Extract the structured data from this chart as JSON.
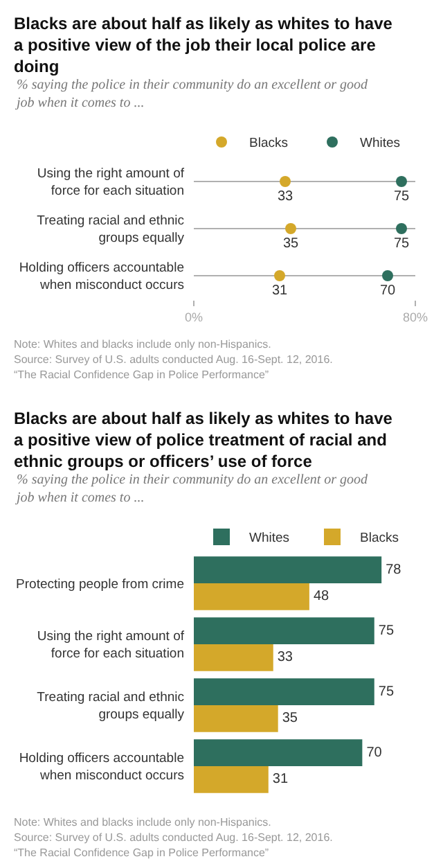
{
  "chart_data": [
    {
      "type": "scatter",
      "orientation": "horizontal",
      "title": "Blacks are about half as likely as whites to have a positive view of the job their local police are doing",
      "subtitle": "% saying the police in their community do an excellent or good job when it comes to ...",
      "categories": [
        "Using the right amount of force for each situation",
        "Treating racial and ethnic groups equally",
        "Holding officers accountable when misconduct occurs"
      ],
      "series": [
        {
          "name": "Blacks",
          "color": "#d4a82a",
          "values": [
            33,
            35,
            31
          ]
        },
        {
          "name": "Whites",
          "color": "#2e6f5e",
          "values": [
            75,
            75,
            70
          ]
        }
      ],
      "xlim": [
        0,
        80
      ],
      "xticks": [
        {
          "value": 0,
          "label": "0%"
        },
        {
          "value": 80,
          "label": "80%"
        }
      ],
      "data_labels": true,
      "grid": "y",
      "legend": "top",
      "marker": "circle",
      "annotations": [
        "Note: Whites and blacks include only non-Hispanics.",
        "Source: Survey of U.S. adults conducted Aug. 16-Sept. 12, 2016.",
        "“The Racial Confidence Gap in Police Performance”"
      ]
    },
    {
      "type": "bar",
      "orientation": "horizontal",
      "title": "Blacks are about half as likely as whites to have a positive view of police treatment of racial and ethnic groups or officers’ use of force",
      "subtitle": "% saying the police in their community do an excellent or good job when it comes to ...",
      "categories": [
        "Protecting people from crime",
        "Using the right amount of force for each situation",
        "Treating racial and ethnic groups equally",
        "Holding officers accountable when misconduct occurs"
      ],
      "series": [
        {
          "name": "Whites",
          "color": "#2e6f5e",
          "values": [
            78,
            75,
            75,
            70
          ]
        },
        {
          "name": "Blacks",
          "color": "#d4a82a",
          "values": [
            48,
            33,
            35,
            31
          ]
        }
      ],
      "data_labels": true,
      "legend": "top",
      "annotations": [
        "Note: Whites and blacks include only non-Hispanics.",
        "Source: Survey of U.S. adults conducted Aug. 16-Sept. 12, 2016.",
        "“The Racial Confidence Gap in Police Performance”"
      ]
    }
  ]
}
